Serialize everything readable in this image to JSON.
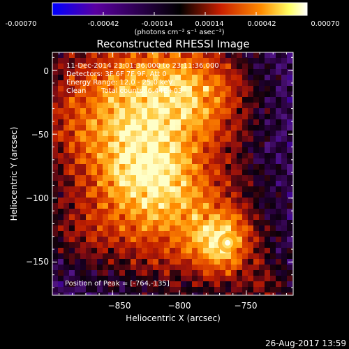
{
  "figure": {
    "title": "Reconstructed RHESSI Image",
    "footer_date": "26-Aug-2017 13:59"
  },
  "colorbar": {
    "ticks": [
      "-0.00070",
      "-0.00042",
      "-0.00014",
      "0.00014",
      "0.00042",
      "0.00070"
    ],
    "tick_values": [
      -0.0007,
      -0.00042,
      -0.00014,
      0.00014,
      0.00042,
      0.0007
    ],
    "range": [
      -0.0007,
      0.0007
    ],
    "unit_label": "(photons cm⁻² s⁻¹ asec⁻²)",
    "colors": [
      "#0000ff",
      "#5a00a0",
      "#000000",
      "#c81e00",
      "#ff8c00",
      "#ffff64",
      "#ffffff"
    ]
  },
  "annotations": {
    "line1": "11-Dec-2014 23:01:36.000 to 23:11:36.000",
    "line2": "Detectors: 3F 6F 7F 9F, Att 0",
    "line3": "Energy Range: 12.0 - 25.0 keV",
    "line4_a": "Clean",
    "line4_b": "Total counts: 6.44E+03",
    "peak": "Position of Peak = [-764,-135]"
  },
  "chart_data": {
    "type": "heatmap",
    "title": "Reconstructed RHESSI Image",
    "xlabel": "Heliocentric X (arcsec)",
    "ylabel": "Heliocentric Y (arcsec)",
    "xlim": [
      -895,
      -715
    ],
    "ylim": [
      -176,
      14
    ],
    "xticks": [
      -850,
      -800,
      -750
    ],
    "xtick_labels": [
      "−850",
      "−800",
      "−750"
    ],
    "yticks": [
      0,
      -50,
      -100,
      -150
    ],
    "ytick_labels": [
      "0",
      "−50",
      "−100",
      "−150"
    ],
    "peak_position": [
      -764,
      -135
    ],
    "value_range": [
      -0.0007,
      0.0007
    ],
    "grid": false
  }
}
